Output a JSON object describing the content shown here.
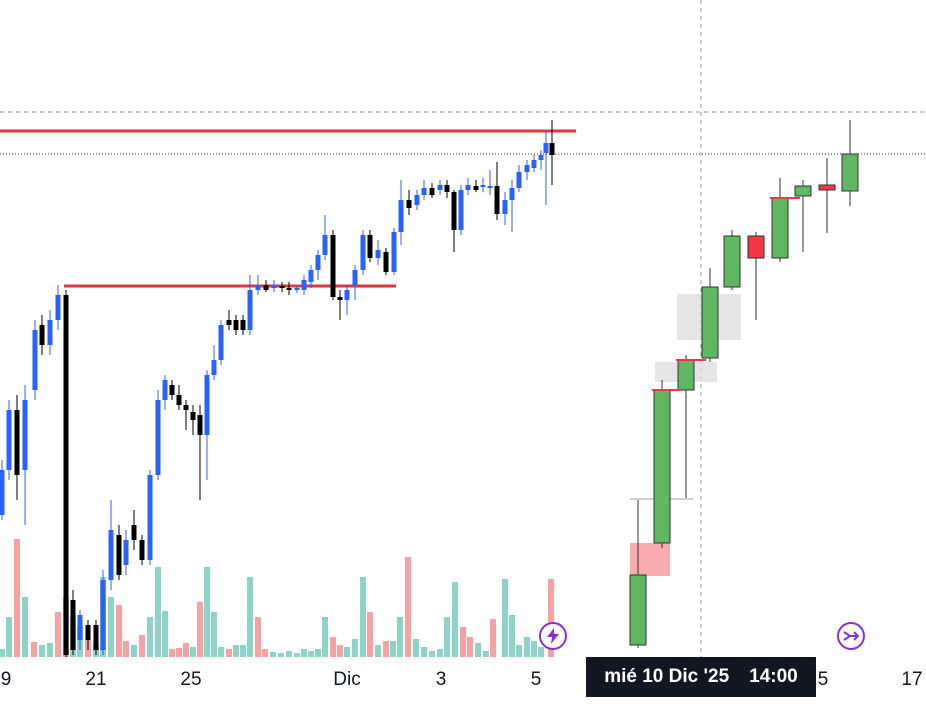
{
  "axis": {
    "ticks": [
      {
        "label": "9",
        "x": 6
      },
      {
        "label": "21",
        "x": 96
      },
      {
        "label": "25",
        "x": 191
      },
      {
        "label": "Dic",
        "x": 347
      },
      {
        "label": "3",
        "x": 441
      },
      {
        "label": "5",
        "x": 536
      },
      {
        "label": "5",
        "x": 823
      },
      {
        "label": "17",
        "x": 912
      }
    ]
  },
  "crosshair": {
    "date_label": "mié 10 Dic '25",
    "time_label": "14:00"
  },
  "icons": {
    "left_action": "lightning-icon",
    "right_action": "arrow-forward-icon"
  },
  "colors": {
    "bull_small": "#2962ff",
    "bear_small": "#000000",
    "bull_big": "#5fb760",
    "bear_big": "#f23645",
    "level_line": "#e5333f",
    "vol_up": "#8dd3c7",
    "vol_down": "#f6a2a2"
  }
}
